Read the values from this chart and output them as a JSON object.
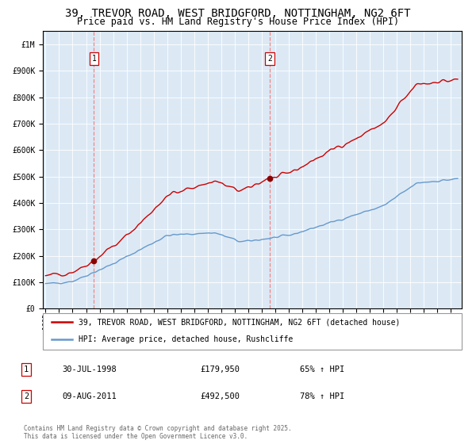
{
  "title": "39, TREVOR ROAD, WEST BRIDGFORD, NOTTINGHAM, NG2 6FT",
  "subtitle": "Price paid vs. HM Land Registry's House Price Index (HPI)",
  "title_fontsize": 10,
  "subtitle_fontsize": 8.5,
  "bg_color": "#dce9f5",
  "red_line_color": "#cc0000",
  "blue_line_color": "#6699cc",
  "dashed_color": "#ee8888",
  "sale1_date": 1998.58,
  "sale1_price": 179950,
  "sale2_date": 2011.6,
  "sale2_price": 492500,
  "marker_color": "#8b0000",
  "legend_entry1": "39, TREVOR ROAD, WEST BRIDGFORD, NOTTINGHAM, NG2 6FT (detached house)",
  "legend_entry2": "HPI: Average price, detached house, Rushcliffe",
  "annotation1_date": "30-JUL-1998",
  "annotation1_price": "£179,950",
  "annotation1_hpi": "65% ↑ HPI",
  "annotation2_date": "09-AUG-2011",
  "annotation2_price": "£492,500",
  "annotation2_hpi": "78% ↑ HPI",
  "footer": "Contains HM Land Registry data © Crown copyright and database right 2025.\nThis data is licensed under the Open Government Licence v3.0.",
  "ylim_min": 0,
  "ylim_max": 1050000,
  "xmin": 1994.8,
  "xmax": 2025.8
}
